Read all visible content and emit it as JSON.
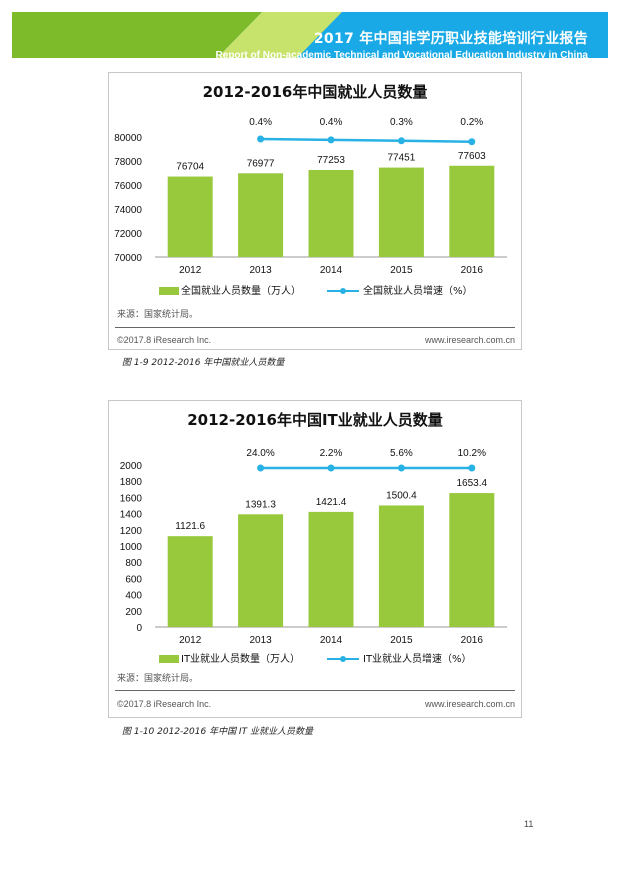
{
  "header": {
    "title": "2017 年中国非学历职业技能培训行业报告",
    "subtitle": "Report of Non-academic Technical and Vocational Education Industry in China"
  },
  "colors": {
    "banner_dark": "#7dbb2a",
    "banner_light": "#c7e36b",
    "banner_blue": "#19a9e6",
    "bar": "#98c93c",
    "line": "#27b1e5"
  },
  "chart_data": [
    {
      "type": "bar",
      "title": "2012-2016年中国就业人员数量",
      "categories": [
        "2012",
        "2013",
        "2014",
        "2015",
        "2016"
      ],
      "series": [
        {
          "name": "全国就业人员数量（万人）",
          "type": "bar",
          "values": [
            76704,
            76977,
            77253,
            77451,
            77603
          ],
          "labels": [
            "76704",
            "76977",
            "77253",
            "77451",
            "77603"
          ]
        },
        {
          "name": "全国就业人员增速（%）",
          "type": "line",
          "values": [
            0.4,
            0.4,
            0.3,
            0.2
          ],
          "x": [
            "2013",
            "2014",
            "2015",
            "2016"
          ],
          "labels": [
            "0.4%",
            "0.4%",
            "0.3%",
            "0.2%"
          ]
        }
      ],
      "yticks": [
        "80000",
        "78000",
        "76000",
        "74000",
        "72000",
        "70000"
      ],
      "ylim": [
        70000,
        80000
      ],
      "legend_position": "bottom",
      "source": "来源：国家统计局。",
      "copyright": "©2017.8 iResearch Inc.",
      "website": "www.iresearch.com.cn"
    },
    {
      "type": "bar",
      "title": "2012-2016年中国IT业就业人员数量",
      "categories": [
        "2012",
        "2013",
        "2014",
        "2015",
        "2016"
      ],
      "series": [
        {
          "name": "IT业就业人员数量（万人）",
          "type": "bar",
          "values": [
            1121.6,
            1391.3,
            1421.4,
            1500.4,
            1653.4
          ],
          "labels": [
            "1121.6",
            "1391.3",
            "1421.4",
            "1500.4",
            "1653.4"
          ]
        },
        {
          "name": "IT业就业人员增速（%）",
          "type": "line",
          "values": [
            24.0,
            2.2,
            5.6,
            10.2
          ],
          "x": [
            "2013",
            "2014",
            "2015",
            "2016"
          ],
          "labels": [
            "24.0%",
            "2.2%",
            "5.6%",
            "10.2%"
          ]
        }
      ],
      "yticks": [
        "2000",
        "1800",
        "1600",
        "1400",
        "1200",
        "1000",
        "800",
        "600",
        "400",
        "200",
        "0"
      ],
      "ylim": [
        0,
        2000
      ],
      "legend_position": "bottom",
      "source": "来源：国家统计局。",
      "copyright": "©2017.8 iResearch Inc.",
      "website": "www.iresearch.com.cn"
    }
  ],
  "captions": {
    "fig1": "图 1-9 2012-2016 年中国就业人员数量",
    "fig2": "图 1-10 2012-2016 年中国 IT 业就业人员数量"
  },
  "page_number": "11"
}
